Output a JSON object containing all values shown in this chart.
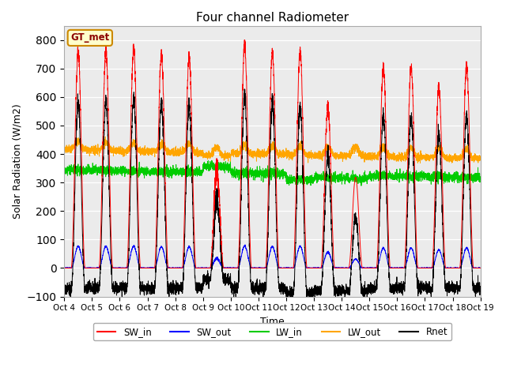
{
  "title": "Four channel Radiometer",
  "xlabel": "Time",
  "ylabel": "Solar Radiation (W/m2)",
  "ylim": [
    -100,
    850
  ],
  "xlim": [
    0,
    15
  ],
  "tick_labels": [
    "Oct 4",
    "Oct 5",
    "Oct 6",
    "Oct 7",
    "Oct 8",
    "Oct 9",
    "Oct 10",
    "Oct 11",
    "Oct 12",
    "Oct 13",
    "Oct 14",
    "Oct 15",
    "Oct 16",
    "Oct 17",
    "Oct 18",
    "Oct 19"
  ],
  "yticks": [
    -100,
    0,
    100,
    200,
    300,
    400,
    500,
    600,
    700,
    800
  ],
  "colors": {
    "SW_in": "#ff0000",
    "SW_out": "#0000ff",
    "LW_in": "#00cc00",
    "LW_out": "#ffa500",
    "Rnet": "#000000"
  },
  "annotation_text": "GT_met",
  "annotation_box_color": "#ffffcc",
  "annotation_edge_color": "#cc8800",
  "plot_bg_color": "#ebebeb"
}
